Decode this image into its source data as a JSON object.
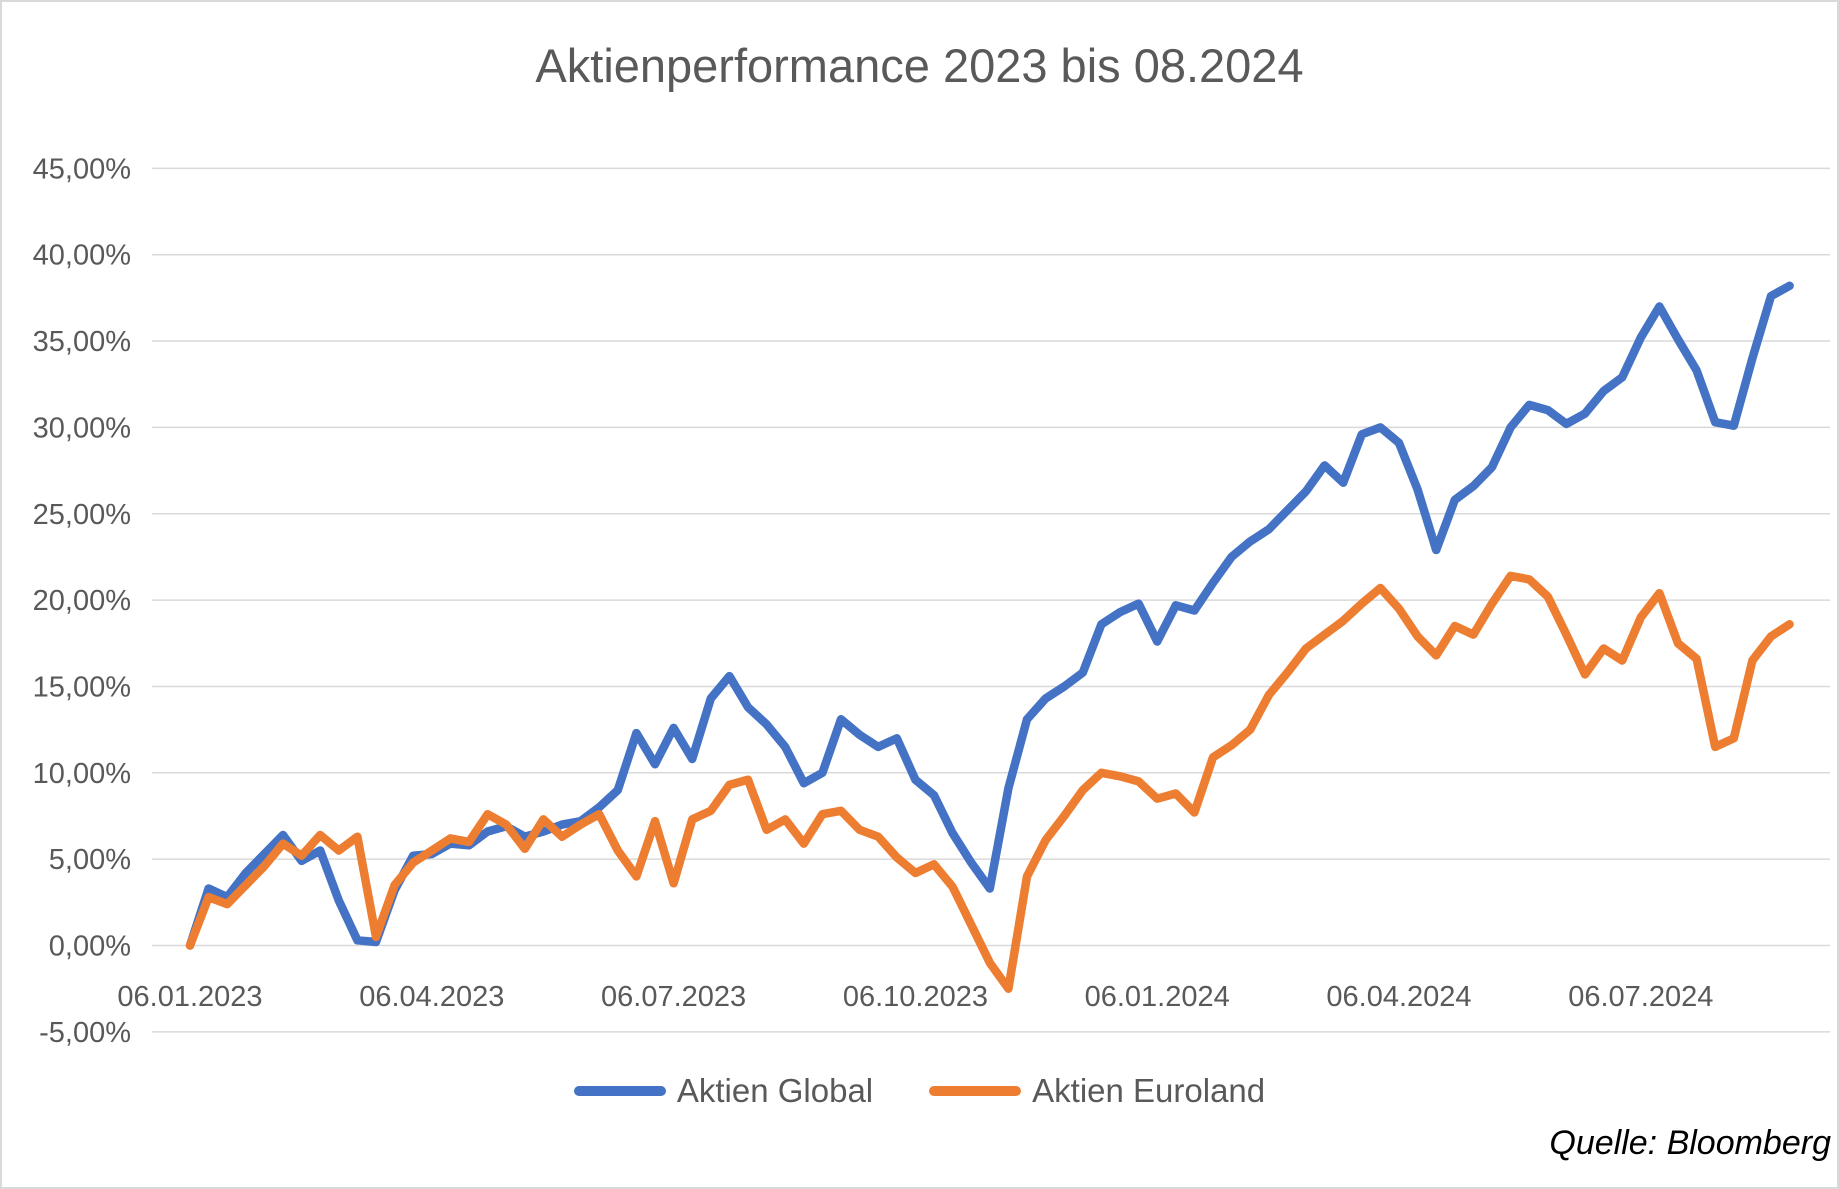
{
  "chart_data": {
    "type": "line",
    "title": "Aktienperformance 2023 bis 08.2024",
    "source": "Quelle: Bloomberg",
    "xlabel": "",
    "ylabel": "",
    "ylim": [
      -5,
      45
    ],
    "grid": true,
    "legend_position": "bottom",
    "grid_color": "#D9D9D9",
    "axis_text_color": "#595959",
    "x_tick_labels": [
      "06.01.2023",
      "06.04.2023",
      "06.07.2023",
      "06.10.2023",
      "06.01.2024",
      "06.04.2024",
      "06.07.2024"
    ],
    "x_tick_weeks": [
      0,
      13,
      26,
      39,
      52,
      65,
      78
    ],
    "y_tick_labels": [
      "45,00%",
      "40,00%",
      "35,00%",
      "30,00%",
      "25,00%",
      "20,00%",
      "15,00%",
      "10,00%",
      "5,00%",
      "0,00%",
      "-5,00%"
    ],
    "y_tick_values": [
      45,
      40,
      35,
      30,
      25,
      20,
      15,
      10,
      5,
      0,
      -5
    ],
    "series": [
      {
        "name": "Aktien Global",
        "color": "#4472C4",
        "values": [
          0.0,
          3.3,
          2.8,
          4.2,
          5.3,
          6.4,
          4.9,
          5.5,
          2.6,
          0.3,
          0.2,
          3.2,
          5.2,
          5.3,
          5.9,
          5.8,
          6.6,
          6.9,
          6.3,
          6.6,
          7.0,
          7.2,
          8.0,
          9.0,
          12.3,
          10.5,
          12.6,
          10.8,
          14.3,
          15.6,
          13.8,
          12.8,
          11.5,
          9.4,
          10.0,
          13.1,
          12.2,
          11.5,
          12.0,
          9.6,
          8.7,
          6.5,
          4.8,
          3.3,
          9.1,
          13.1,
          14.3,
          15.0,
          15.8,
          18.6,
          19.3,
          19.8,
          17.6,
          19.7,
          19.4,
          21.0,
          22.5,
          23.4,
          24.1,
          25.2,
          26.3,
          27.8,
          26.8,
          29.6,
          30.0,
          29.1,
          26.4,
          22.9,
          25.8,
          26.6,
          27.7,
          30.0,
          31.3,
          31.0,
          30.2,
          30.8,
          32.1,
          32.9,
          35.2,
          37.0,
          35.1,
          33.3,
          30.3,
          30.1,
          34.0,
          37.6,
          38.2
        ]
      },
      {
        "name": "Aktien Euroland",
        "color": "#ED7D31",
        "values": [
          0.0,
          2.8,
          2.4,
          3.5,
          4.6,
          5.9,
          5.2,
          6.4,
          5.5,
          6.3,
          0.5,
          3.5,
          4.8,
          5.5,
          6.2,
          6.0,
          7.6,
          7.0,
          5.6,
          7.3,
          6.3,
          7.0,
          7.6,
          5.5,
          4.0,
          7.2,
          3.6,
          7.3,
          7.8,
          9.3,
          9.6,
          6.7,
          7.3,
          5.9,
          7.6,
          7.8,
          6.7,
          6.3,
          5.1,
          4.2,
          4.7,
          3.4,
          1.2,
          -1.0,
          -2.5,
          4.0,
          6.1,
          7.5,
          9.0,
          10.0,
          9.8,
          9.5,
          8.5,
          8.8,
          7.7,
          10.9,
          11.6,
          12.5,
          14.5,
          15.8,
          17.2,
          18.0,
          18.8,
          19.8,
          20.7,
          19.5,
          17.9,
          16.8,
          18.5,
          18.0,
          19.8,
          21.4,
          21.2,
          20.2,
          18.0,
          15.7,
          17.2,
          16.5,
          19.0,
          20.4,
          17.5,
          16.6,
          11.5,
          12.0,
          16.5,
          17.9,
          18.6
        ]
      }
    ]
  }
}
